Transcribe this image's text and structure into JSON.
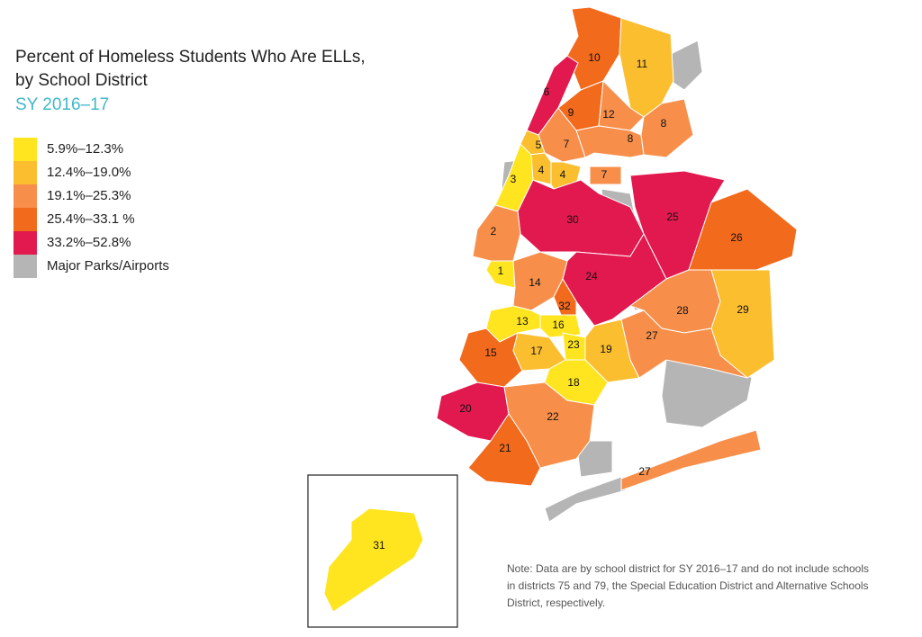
{
  "header": {
    "title": [
      "Percent of Homeless Students Who Are ELLs,",
      "by School District"
    ],
    "subtitle": "SY 2016–17"
  },
  "legend": [
    {
      "label": "5.9%–12.3%",
      "color": "#ffe51f"
    },
    {
      "label": "12.4%–19.0%",
      "color": "#fbbe2f"
    },
    {
      "label": "19.1%–25.3%",
      "color": "#f78f4b"
    },
    {
      "label": "25.4%–33.1 %",
      "color": "#f26a1b"
    },
    {
      "label": "33.2%–52.8%",
      "color": "#e2194f"
    },
    {
      "label": "Major Parks/Airports",
      "color": "#b5b5b5"
    }
  ],
  "districts": [
    {
      "label": "10",
      "color": "#f26a1b"
    },
    {
      "label": "11",
      "color": "#fbbe2f"
    },
    {
      "label": "6",
      "color": "#e2194f"
    },
    {
      "label": "9",
      "color": "#f26a1b"
    },
    {
      "label": "12",
      "color": "#f78f4b"
    },
    {
      "label": "8",
      "color": "#f78f4b"
    },
    {
      "label": "8",
      "color": "#f78f4b"
    },
    {
      "label": "7",
      "color": "#f78f4b"
    },
    {
      "label": "5",
      "color": "#fbbe2f"
    },
    {
      "label": "4",
      "color": "#fbbe2f"
    },
    {
      "label": "4",
      "color": "#fbbe2f"
    },
    {
      "label": "7",
      "color": "#f78f4b"
    },
    {
      "label": "3",
      "color": "#ffe51f"
    },
    {
      "label": "30",
      "color": "#e2194f"
    },
    {
      "label": "25",
      "color": "#e2194f"
    },
    {
      "label": "26",
      "color": "#f26a1b"
    },
    {
      "label": "2",
      "color": "#f78f4b"
    },
    {
      "label": "1",
      "color": "#ffe51f"
    },
    {
      "label": "24",
      "color": "#e2194f"
    },
    {
      "label": "14",
      "color": "#f78f4b"
    },
    {
      "label": "32",
      "color": "#f26a1b"
    },
    {
      "label": "28",
      "color": "#f78f4b"
    },
    {
      "label": "29",
      "color": "#fbbe2f"
    },
    {
      "label": "13",
      "color": "#ffe51f"
    },
    {
      "label": "16",
      "color": "#ffe51f"
    },
    {
      "label": "23",
      "color": "#ffe51f"
    },
    {
      "label": "19",
      "color": "#fbbe2f"
    },
    {
      "label": "27",
      "color": "#f78f4b"
    },
    {
      "label": "15",
      "color": "#f26a1b"
    },
    {
      "label": "17",
      "color": "#fbbe2f"
    },
    {
      "label": "18",
      "color": "#ffe51f"
    },
    {
      "label": "20",
      "color": "#e2194f"
    },
    {
      "label": "22",
      "color": "#f78f4b"
    },
    {
      "label": "21",
      "color": "#f26a1b"
    },
    {
      "label": "27",
      "color": "#f78f4b"
    },
    {
      "label": "31",
      "color": "#ffe51f"
    }
  ],
  "note": [
    "Note: Data are by school district for SY 2016–17 and do not include schools",
    "in districts 75 and 79, the Special Education District and Alternative Schools",
    "District, respectively."
  ]
}
